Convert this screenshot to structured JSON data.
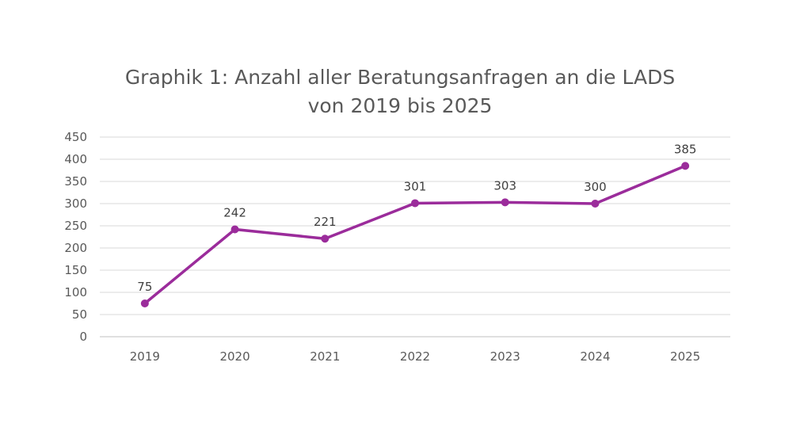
{
  "chart_data": {
    "type": "line",
    "title_line1": "Graphik 1: Anzahl aller Beratungsanfragen an die LADS",
    "title_line2": "von 2019 bis 2025",
    "categories": [
      "2019",
      "2020",
      "2021",
      "2022",
      "2023",
      "2024",
      "2025"
    ],
    "series": [
      {
        "values": [
          75,
          242,
          221,
          301,
          303,
          300,
          385
        ],
        "color": "#9b2c9b"
      }
    ],
    "ylim": [
      0,
      450
    ],
    "yticks": [
      0,
      50,
      100,
      150,
      200,
      250,
      300,
      350,
      400,
      450
    ],
    "grid": true,
    "legend": "none",
    "gridline_color": "#d9d9d9",
    "axis_color": "#bfbfbf"
  }
}
